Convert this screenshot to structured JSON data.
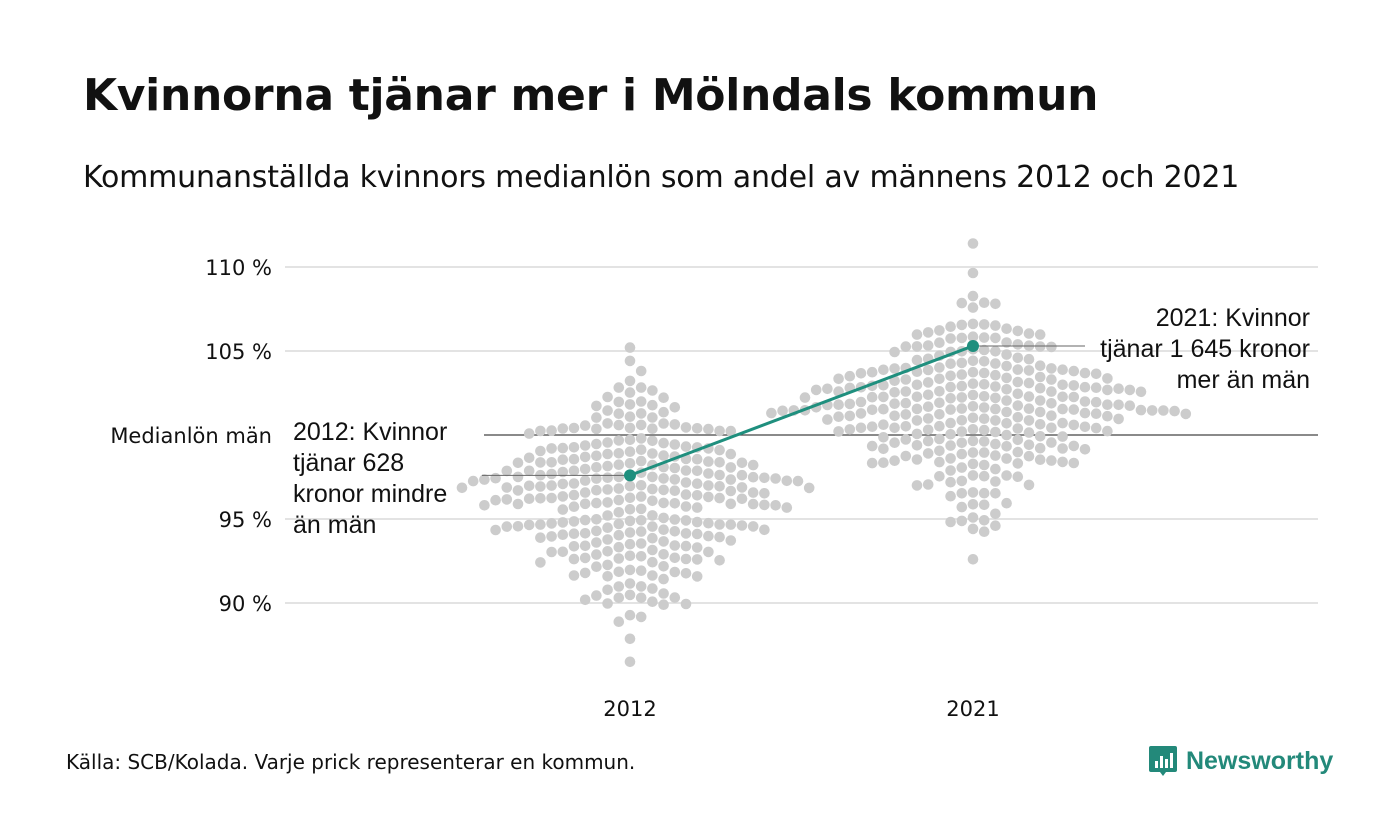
{
  "title": "Kvinnorna tjänar mer i Mölndals kommun",
  "subtitle": "Kommunanställda kvinnors medianlön som andel av männens 2012 och 2021",
  "source": "Källa: SCB/Kolada. Varje prick representerar en kommun.",
  "brand": {
    "name": "Newsworthy",
    "color": "#23897a",
    "icon": "newsworthy-logo-icon"
  },
  "colors": {
    "dots": "#cccccc",
    "highlight": "#1f8f7e",
    "grid": "#e3e3e3",
    "reference": "#444444"
  },
  "chart_data": {
    "type": "scatter",
    "subtype": "beeswarm",
    "title": "Kvinnorna tjänar mer i Mölndals kommun",
    "subtitle": "Kommunanställda kvinnors medianlön som andel av männens 2012 och 2021",
    "x_categories": [
      "2012",
      "2021"
    ],
    "y_unit": "%",
    "ylim": [
      86,
      111.5
    ],
    "y_ticks": [
      {
        "value": 90,
        "label": "90 %"
      },
      {
        "value": 95,
        "label": "95 %"
      },
      {
        "value": 105,
        "label": "105 %"
      },
      {
        "value": 110,
        "label": "110 %"
      }
    ],
    "reference_line": {
      "value": 100,
      "label": "Medianlön män"
    },
    "grid": true,
    "series": [
      {
        "year": "2012",
        "distribution": {
          "min": 86.5,
          "max": 105.2,
          "center": 96.2,
          "spread": 2.8,
          "count": 290
        },
        "highlight": {
          "value": 97.6,
          "lines": [
            "2012: Kvinnor",
            "tjänar 628",
            "kronor mindre",
            "än män"
          ]
        }
      },
      {
        "year": "2021",
        "distribution": {
          "min": 92.6,
          "max": 111.4,
          "center": 101.5,
          "spread": 2.9,
          "count": 290
        },
        "highlight": {
          "value": 105.3,
          "lines": [
            "2021: Kvinnor",
            "tjänar 1 645 kronor",
            "mer än män"
          ]
        }
      }
    ]
  }
}
